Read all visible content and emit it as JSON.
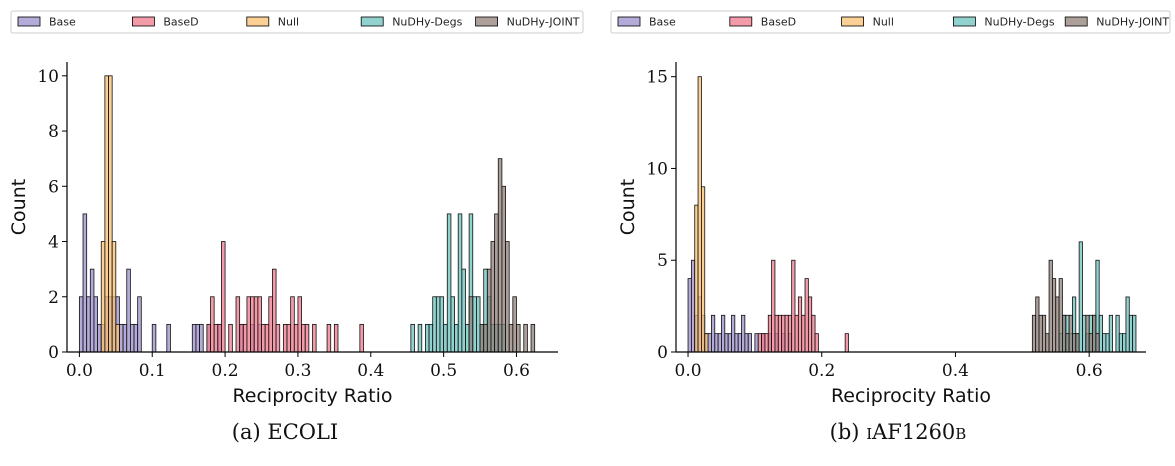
{
  "legend": [
    {
      "name": "Base",
      "color": "#9b8fcb"
    },
    {
      "name": "BaseD",
      "color": "#f07a8c"
    },
    {
      "name": "Null",
      "color": "#fbbf72"
    },
    {
      "name": "NuDHy-Degs",
      "color": "#6cc3bf"
    },
    {
      "name": "NuDHy-JOINT",
      "color": "#92807a"
    }
  ],
  "captions": {
    "a_prefix": "(a) ",
    "a_name": "ECOLI",
    "b_prefix": "(b) ",
    "b_name": "iAF1260b"
  },
  "chart_data": [
    {
      "type": "bar",
      "title": "",
      "xlabel": "Reciprocity Ratio",
      "ylabel": "Count",
      "xlim": [
        -0.017,
        0.657
      ],
      "ylim": [
        0,
        10.5
      ],
      "xticks": [
        0.0,
        0.1,
        0.2,
        0.3,
        0.4,
        0.5,
        0.6
      ],
      "xtick_labels": [
        "0.0",
        "0.1",
        "0.2",
        "0.3",
        "0.4",
        "0.5",
        "0.6"
      ],
      "yticks": [
        0,
        2,
        4,
        6,
        8,
        10
      ],
      "ytick_labels": [
        "0",
        "2",
        "4",
        "6",
        "8",
        "10"
      ],
      "bin_width": 0.005,
      "series": [
        {
          "name": "Base",
          "bins": [
            [
              0.0,
              2
            ],
            [
              0.005,
              5
            ],
            [
              0.01,
              2
            ],
            [
              0.015,
              3
            ],
            [
              0.02,
              2
            ],
            [
              0.025,
              1
            ],
            [
              0.03,
              1
            ],
            [
              0.035,
              2
            ],
            [
              0.04,
              2
            ],
            [
              0.045,
              2
            ],
            [
              0.05,
              2
            ],
            [
              0.055,
              1
            ],
            [
              0.06,
              1
            ],
            [
              0.065,
              3
            ],
            [
              0.07,
              1
            ],
            [
              0.075,
              1
            ],
            [
              0.08,
              2
            ],
            [
              0.1,
              1
            ],
            [
              0.12,
              1
            ],
            [
              0.155,
              1
            ],
            [
              0.16,
              1
            ],
            [
              0.165,
              1
            ],
            [
              0.175,
              1
            ],
            [
              0.19,
              1
            ],
            [
              0.22,
              1
            ],
            [
              0.235,
              1
            ],
            [
              0.245,
              1
            ]
          ]
        },
        {
          "name": "BaseD",
          "bins": [
            [
              0.175,
              1
            ],
            [
              0.18,
              2
            ],
            [
              0.185,
              1
            ],
            [
              0.19,
              1
            ],
            [
              0.195,
              4
            ],
            [
              0.205,
              1
            ],
            [
              0.215,
              2
            ],
            [
              0.22,
              1
            ],
            [
              0.225,
              1
            ],
            [
              0.23,
              2
            ],
            [
              0.235,
              2
            ],
            [
              0.24,
              2
            ],
            [
              0.245,
              2
            ],
            [
              0.25,
              1
            ],
            [
              0.255,
              1
            ],
            [
              0.26,
              2
            ],
            [
              0.265,
              3
            ],
            [
              0.27,
              1
            ],
            [
              0.28,
              1
            ],
            [
              0.285,
              1
            ],
            [
              0.29,
              2
            ],
            [
              0.295,
              1
            ],
            [
              0.3,
              2
            ],
            [
              0.305,
              1
            ],
            [
              0.31,
              1
            ],
            [
              0.32,
              1
            ],
            [
              0.34,
              1
            ],
            [
              0.35,
              1
            ],
            [
              0.385,
              1
            ]
          ]
        },
        {
          "name": "Null",
          "bins": [
            [
              0.03,
              4
            ],
            [
              0.035,
              10
            ],
            [
              0.04,
              10
            ],
            [
              0.045,
              4
            ],
            [
              0.05,
              1
            ]
          ]
        },
        {
          "name": "NuDHy-Degs",
          "bins": [
            [
              0.455,
              1
            ],
            [
              0.465,
              1
            ],
            [
              0.475,
              1
            ],
            [
              0.48,
              1
            ],
            [
              0.485,
              2
            ],
            [
              0.49,
              2
            ],
            [
              0.495,
              2
            ],
            [
              0.5,
              1
            ],
            [
              0.505,
              5
            ],
            [
              0.51,
              2
            ],
            [
              0.515,
              1
            ],
            [
              0.52,
              5
            ],
            [
              0.525,
              3
            ],
            [
              0.53,
              1
            ],
            [
              0.535,
              5
            ],
            [
              0.54,
              2
            ],
            [
              0.545,
              2
            ],
            [
              0.55,
              1
            ],
            [
              0.555,
              3
            ],
            [
              0.56,
              2
            ],
            [
              0.565,
              1
            ],
            [
              0.57,
              1
            ],
            [
              0.575,
              1
            ],
            [
              0.58,
              1
            ]
          ]
        },
        {
          "name": "NuDHy-JOINT",
          "bins": [
            [
              0.535,
              2
            ],
            [
              0.55,
              1
            ],
            [
              0.555,
              1
            ],
            [
              0.56,
              3
            ],
            [
              0.565,
              4
            ],
            [
              0.57,
              5
            ],
            [
              0.575,
              7
            ],
            [
              0.58,
              6
            ],
            [
              0.585,
              4
            ],
            [
              0.59,
              1
            ],
            [
              0.595,
              2
            ],
            [
              0.6,
              1
            ],
            [
              0.61,
              1
            ],
            [
              0.62,
              1
            ]
          ]
        }
      ]
    },
    {
      "type": "bar",
      "title": "",
      "xlabel": "Reciprocity Ratio",
      "ylabel": "Count",
      "xlim": [
        -0.018,
        0.685
      ],
      "ylim": [
        0,
        15.8
      ],
      "xticks": [
        0.0,
        0.2,
        0.4,
        0.6
      ],
      "xtick_labels": [
        "0.0",
        "0.2",
        "0.4",
        "0.6"
      ],
      "yticks": [
        0,
        5,
        10,
        15
      ],
      "ytick_labels": [
        "0",
        "5",
        "10",
        "15"
      ],
      "bin_width": 0.005,
      "series": [
        {
          "name": "Base",
          "bins": [
            [
              0.0,
              4
            ],
            [
              0.005,
              5
            ],
            [
              0.01,
              2
            ],
            [
              0.015,
              3
            ],
            [
              0.02,
              2
            ],
            [
              0.025,
              1
            ],
            [
              0.03,
              1
            ],
            [
              0.035,
              2
            ],
            [
              0.04,
              1
            ],
            [
              0.045,
              1
            ],
            [
              0.05,
              2
            ],
            [
              0.055,
              1
            ],
            [
              0.06,
              1
            ],
            [
              0.065,
              2
            ],
            [
              0.07,
              1
            ],
            [
              0.075,
              1
            ],
            [
              0.08,
              2
            ],
            [
              0.085,
              1
            ],
            [
              0.09,
              1
            ],
            [
              0.1,
              1
            ],
            [
              0.11,
              1
            ],
            [
              0.12,
              1
            ],
            [
              0.13,
              1
            ],
            [
              0.14,
              1
            ],
            [
              0.15,
              1
            ]
          ]
        },
        {
          "name": "BaseD",
          "bins": [
            [
              0.105,
              1
            ],
            [
              0.11,
              1
            ],
            [
              0.115,
              1
            ],
            [
              0.12,
              2
            ],
            [
              0.125,
              5
            ],
            [
              0.13,
              2
            ],
            [
              0.135,
              2
            ],
            [
              0.14,
              2
            ],
            [
              0.145,
              2
            ],
            [
              0.15,
              2
            ],
            [
              0.155,
              5
            ],
            [
              0.16,
              2
            ],
            [
              0.165,
              3
            ],
            [
              0.17,
              2
            ],
            [
              0.175,
              4
            ],
            [
              0.18,
              3
            ],
            [
              0.185,
              2
            ],
            [
              0.19,
              1
            ],
            [
              0.235,
              1
            ]
          ]
        },
        {
          "name": "Null",
          "bins": [
            [
              0.01,
              8
            ],
            [
              0.015,
              15
            ],
            [
              0.02,
              9
            ],
            [
              0.025,
              1
            ]
          ]
        },
        {
          "name": "NuDHy-Degs",
          "bins": [
            [
              0.555,
              1
            ],
            [
              0.56,
              2
            ],
            [
              0.565,
              2
            ],
            [
              0.57,
              1
            ],
            [
              0.575,
              3
            ],
            [
              0.58,
              1
            ],
            [
              0.585,
              6
            ],
            [
              0.59,
              2
            ],
            [
              0.595,
              1
            ],
            [
              0.6,
              2
            ],
            [
              0.605,
              2
            ],
            [
              0.61,
              5
            ],
            [
              0.615,
              2
            ],
            [
              0.62,
              1
            ],
            [
              0.625,
              1
            ],
            [
              0.63,
              2
            ],
            [
              0.64,
              2
            ],
            [
              0.645,
              1
            ],
            [
              0.65,
              1
            ],
            [
              0.655,
              3
            ],
            [
              0.66,
              2
            ],
            [
              0.665,
              2
            ]
          ]
        },
        {
          "name": "NuDHy-JOINT",
          "bins": [
            [
              0.515,
              2
            ],
            [
              0.52,
              3
            ],
            [
              0.525,
              2
            ],
            [
              0.53,
              2
            ],
            [
              0.535,
              1
            ],
            [
              0.54,
              5
            ],
            [
              0.545,
              4
            ],
            [
              0.55,
              3
            ],
            [
              0.555,
              4
            ],
            [
              0.56,
              2
            ],
            [
              0.565,
              1
            ],
            [
              0.57,
              2
            ],
            [
              0.575,
              1
            ],
            [
              0.58,
              1
            ],
            [
              0.595,
              2
            ],
            [
              0.6,
              1
            ],
            [
              0.605,
              2
            ],
            [
              0.61,
              1
            ]
          ]
        }
      ]
    }
  ]
}
